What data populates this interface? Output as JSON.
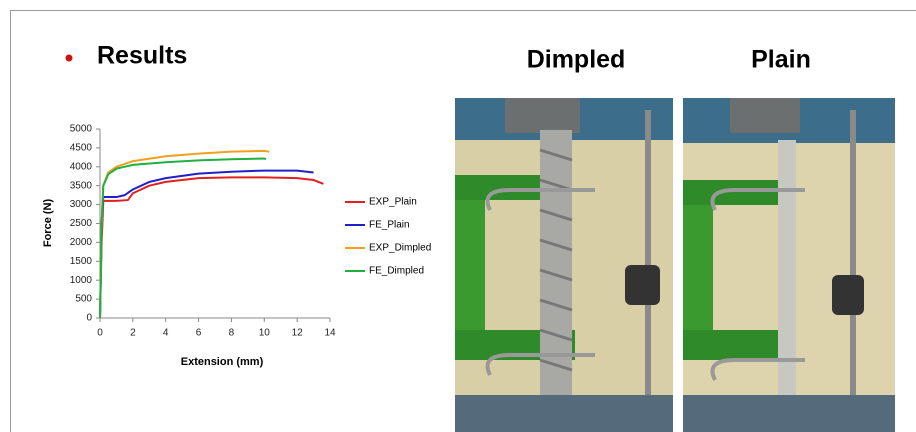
{
  "slide": {
    "heading": "Results",
    "photo_labels": [
      "Dimpled",
      "Plain"
    ]
  },
  "chart_data": {
    "type": "line",
    "xlabel": "Extension (mm)",
    "ylabel": "Force (N)",
    "xlim": [
      0,
      14
    ],
    "xticks": [
      0,
      2,
      4,
      6,
      8,
      10,
      12,
      14
    ],
    "ylim": [
      0,
      5000
    ],
    "yticks": [
      0,
      500,
      1000,
      1500,
      2000,
      2500,
      3000,
      3500,
      4000,
      4500,
      5000
    ],
    "grid": false,
    "legend": "right",
    "series": [
      {
        "name": "EXP_Plain",
        "color": "#e02020",
        "x": [
          0,
          0.1,
          0.2,
          1,
          1.7,
          2,
          3,
          4,
          6,
          8,
          10,
          12,
          13,
          13.6
        ],
        "values": [
          0,
          2000,
          3100,
          3100,
          3120,
          3300,
          3500,
          3600,
          3700,
          3720,
          3720,
          3700,
          3650,
          3550
        ]
      },
      {
        "name": "FE_Plain",
        "color": "#2020c8",
        "x": [
          0,
          0.1,
          0.2,
          1,
          1.5,
          2,
          3,
          4,
          6,
          8,
          10,
          12,
          13
        ],
        "values": [
          0,
          2500,
          3200,
          3200,
          3250,
          3400,
          3600,
          3700,
          3820,
          3870,
          3900,
          3900,
          3850
        ]
      },
      {
        "name": "EXP_Dimpled",
        "color": "#f0a020",
        "x": [
          0,
          0.1,
          0.2,
          0.5,
          1,
          2,
          4,
          6,
          8,
          10,
          10.3
        ],
        "values": [
          0,
          2500,
          3500,
          3850,
          4000,
          4150,
          4280,
          4350,
          4400,
          4420,
          4400
        ]
      },
      {
        "name": "FE_Dimpled",
        "color": "#20b040",
        "x": [
          0,
          0.1,
          0.2,
          0.5,
          1,
          2,
          4,
          6,
          8,
          10,
          10.1
        ],
        "values": [
          0,
          2500,
          3500,
          3800,
          3950,
          4050,
          4120,
          4170,
          4200,
          4220,
          4200
        ]
      }
    ]
  }
}
